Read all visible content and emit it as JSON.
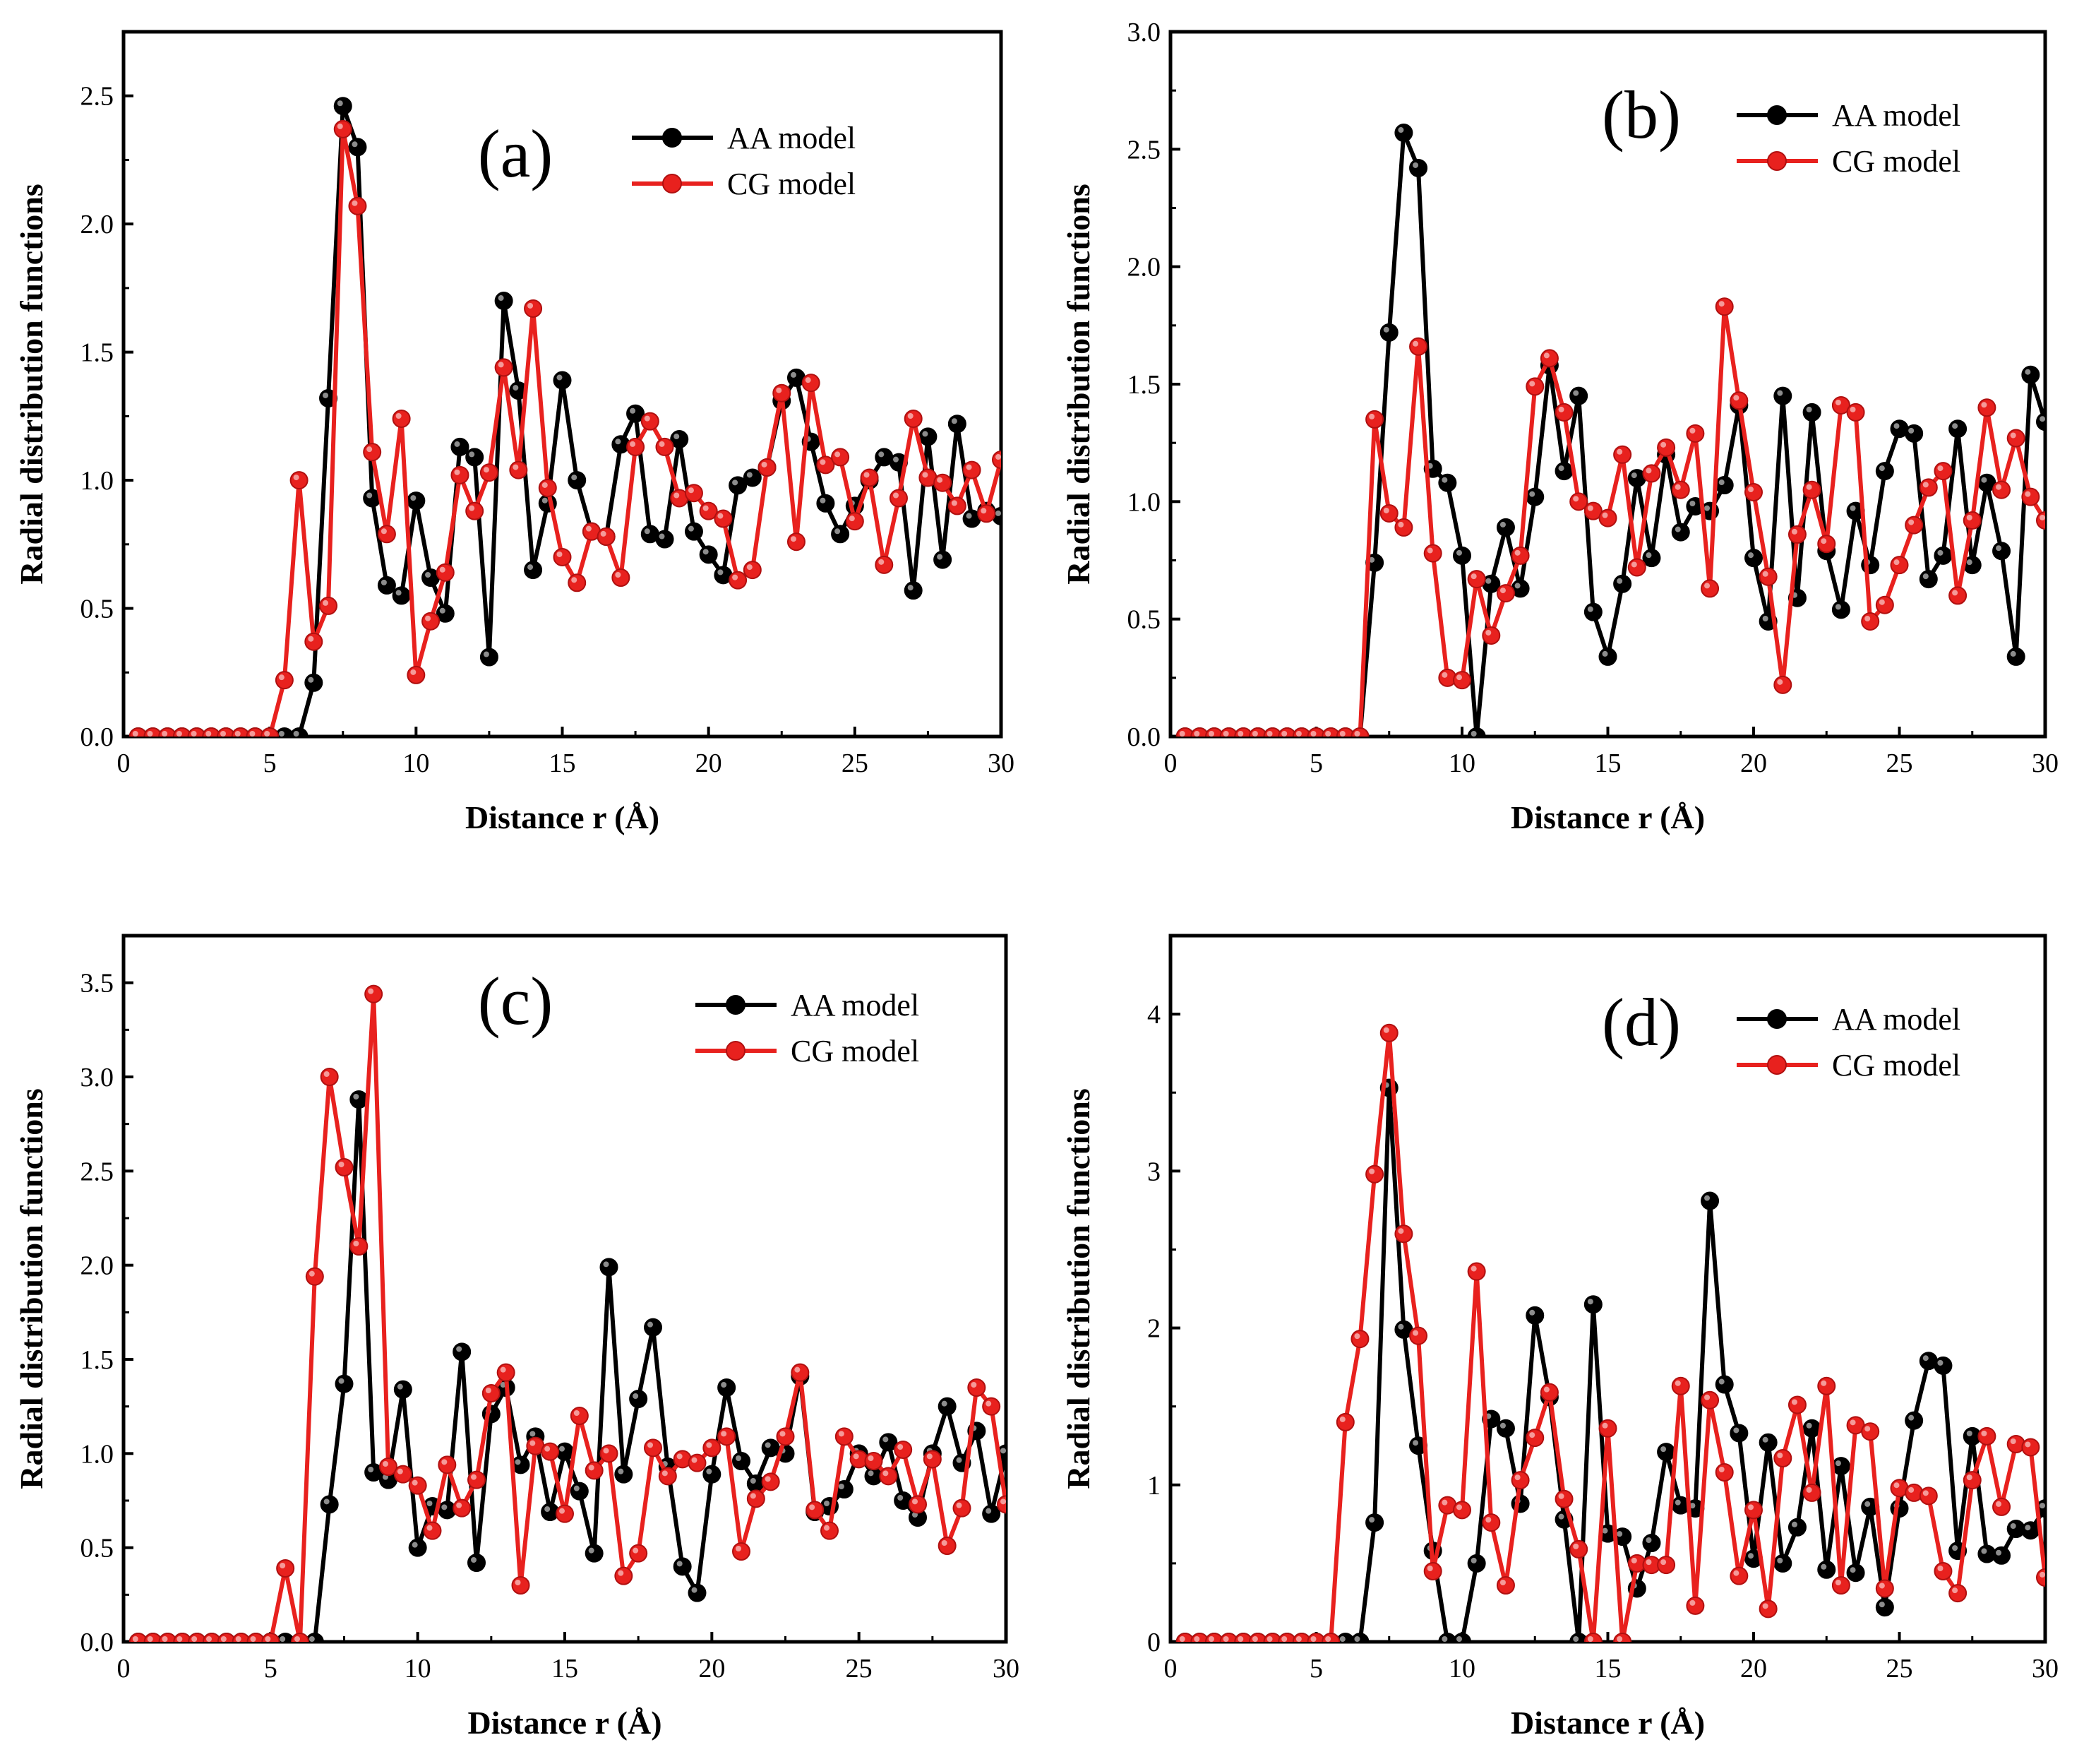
{
  "colors": {
    "aa": "#000000",
    "cg": "#e8211e",
    "frame": "#000000",
    "background": "#ffffff"
  },
  "chart_data": [
    {
      "panel": "(a)",
      "type": "line",
      "xlabel": "Distance r (Å)",
      "ylabel": "Radial distribution functions",
      "xlim": [
        0,
        30
      ],
      "ylim": [
        0,
        2.75
      ],
      "xticks": [
        0,
        5,
        10,
        15,
        20,
        25,
        30
      ],
      "yticks": [
        0.0,
        0.5,
        1.0,
        1.5,
        2.0,
        2.5
      ],
      "ytick_labels": [
        "0.0",
        "0.5",
        "1.0",
        "1.5",
        "2.0",
        "2.5"
      ],
      "legend": {
        "position": "top-right",
        "entries": [
          "AA model",
          "CG model"
        ]
      },
      "x": [
        0.5,
        1.0,
        1.5,
        2.0,
        2.5,
        3.0,
        3.5,
        4.0,
        4.5,
        5.0,
        5.5,
        6.0,
        6.5,
        7.0,
        7.5,
        8.0,
        8.5,
        9.0,
        9.5,
        10.0,
        10.5,
        11.0,
        11.5,
        12.0,
        12.5,
        13.0,
        13.5,
        14.0,
        14.5,
        15.0,
        15.5,
        16.0,
        16.5,
        17.0,
        17.5,
        18.0,
        18.5,
        19.0,
        19.5,
        20.0,
        20.5,
        21.0,
        21.5,
        22.0,
        22.5,
        23.0,
        23.5,
        24.0,
        24.5,
        25.0,
        25.5,
        26.0,
        26.5,
        27.0,
        27.5,
        28.0,
        28.5,
        29.0,
        29.5,
        30.0
      ],
      "series": [
        {
          "name": "AA model",
          "values": [
            0,
            0,
            0,
            0,
            0,
            0,
            0,
            0,
            0,
            0,
            0,
            0,
            0.21,
            1.32,
            2.46,
            2.3,
            0.93,
            0.59,
            0.55,
            0.92,
            0.62,
            0.48,
            1.13,
            1.09,
            0.31,
            1.7,
            1.35,
            0.65,
            0.91,
            1.39,
            1.0,
            0.8,
            0.78,
            1.14,
            1.26,
            0.79,
            0.77,
            1.16,
            0.8,
            0.71,
            0.63,
            0.98,
            1.01,
            1.05,
            1.31,
            1.4,
            1.15,
            0.91,
            0.79,
            0.9,
            1.0,
            1.09,
            1.07,
            0.57,
            1.17,
            0.69,
            1.22,
            0.85,
            0.88,
            0.86
          ]
        },
        {
          "name": "CG model",
          "values": [
            0,
            0,
            0,
            0,
            0,
            0,
            0,
            0,
            0,
            0,
            0.22,
            1.0,
            0.37,
            0.51,
            2.37,
            2.07,
            1.11,
            0.79,
            1.24,
            0.24,
            0.45,
            0.64,
            1.02,
            0.88,
            1.03,
            1.44,
            1.04,
            1.67,
            0.97,
            0.7,
            0.6,
            0.8,
            0.78,
            0.62,
            1.13,
            1.23,
            1.13,
            0.93,
            0.95,
            0.88,
            0.85,
            0.61,
            0.65,
            1.05,
            1.34,
            0.76,
            1.38,
            1.06,
            1.09,
            0.84,
            1.01,
            0.67,
            0.93,
            1.24,
            1.01,
            0.99,
            0.9,
            1.04,
            0.87,
            1.08
          ]
        }
      ]
    },
    {
      "panel": "(b)",
      "type": "line",
      "xlabel": "Distance r (Å)",
      "ylabel": "Radial distribution functions",
      "xlim": [
        0,
        30
      ],
      "ylim": [
        0,
        3.0
      ],
      "xticks": [
        0,
        5,
        10,
        15,
        20,
        25,
        30
      ],
      "yticks": [
        0.0,
        0.5,
        1.0,
        1.5,
        2.0,
        2.5,
        3.0
      ],
      "ytick_labels": [
        "0.0",
        "0.5",
        "1.0",
        "1.5",
        "2.0",
        "2.5",
        "3.0"
      ],
      "legend": {
        "position": "top-right",
        "entries": [
          "AA model",
          "CG model"
        ]
      },
      "x": [
        0.5,
        1.0,
        1.5,
        2.0,
        2.5,
        3.0,
        3.5,
        4.0,
        4.5,
        5.0,
        5.5,
        6.0,
        6.5,
        7.0,
        7.5,
        8.0,
        8.5,
        9.0,
        9.5,
        10.0,
        10.5,
        11.0,
        11.5,
        12.0,
        12.5,
        13.0,
        13.5,
        14.0,
        14.5,
        15.0,
        15.5,
        16.0,
        16.5,
        17.0,
        17.5,
        18.0,
        18.5,
        19.0,
        19.5,
        20.0,
        20.5,
        21.0,
        21.5,
        22.0,
        22.5,
        23.0,
        23.5,
        24.0,
        24.5,
        25.0,
        25.5,
        26.0,
        26.5,
        27.0,
        27.5,
        28.0,
        28.5,
        29.0,
        29.5,
        30.0
      ],
      "series": [
        {
          "name": "AA model",
          "values": [
            0,
            0,
            0,
            0,
            0,
            0,
            0,
            0,
            0,
            0,
            0,
            0,
            0,
            0.74,
            1.72,
            2.57,
            2.42,
            1.14,
            1.08,
            0.77,
            0,
            0.65,
            0.89,
            0.63,
            1.02,
            1.58,
            1.13,
            1.45,
            0.53,
            0.34,
            0.65,
            1.1,
            0.76,
            1.2,
            0.87,
            0.98,
            0.96,
            1.07,
            1.41,
            0.76,
            0.49,
            1.45,
            0.59,
            1.38,
            0.79,
            0.54,
            0.96,
            0.73,
            1.13,
            1.31,
            1.29,
            0.67,
            0.77,
            1.31,
            0.73,
            1.08,
            0.79,
            0.34,
            1.54,
            1.34
          ]
        },
        {
          "name": "CG model",
          "values": [
            0,
            0,
            0,
            0,
            0,
            0,
            0,
            0,
            0,
            0,
            0,
            0,
            0,
            1.35,
            0.95,
            0.89,
            1.66,
            0.78,
            0.25,
            0.24,
            0.67,
            0.43,
            0.61,
            0.77,
            1.49,
            1.61,
            1.38,
            1.0,
            0.96,
            0.93,
            1.2,
            0.72,
            1.12,
            1.23,
            1.05,
            1.29,
            0.63,
            1.83,
            1.43,
            1.04,
            0.68,
            0.22,
            0.86,
            1.05,
            0.82,
            1.41,
            1.38,
            0.49,
            0.56,
            0.73,
            0.9,
            1.06,
            1.13,
            0.6,
            0.92,
            1.4,
            1.05,
            1.27,
            1.02,
            0.92
          ]
        }
      ]
    },
    {
      "panel": "(c)",
      "type": "line",
      "xlabel": "Distance r (Å)",
      "ylabel": "Radial distribution functions",
      "xlim": [
        0,
        30
      ],
      "ylim": [
        0,
        3.75
      ],
      "xticks": [
        0,
        5,
        10,
        15,
        20,
        25,
        30
      ],
      "yticks": [
        0.0,
        0.5,
        1.0,
        1.5,
        2.0,
        2.5,
        3.0,
        3.5
      ],
      "ytick_labels": [
        "0.0",
        "0.5",
        "1.0",
        "1.5",
        "2.0",
        "2.5",
        "3.0",
        "3.5"
      ],
      "legend": {
        "position": "top-right",
        "entries": [
          "AA model",
          "CG model"
        ]
      },
      "x": [
        0.5,
        1.0,
        1.5,
        2.0,
        2.5,
        3.0,
        3.5,
        4.0,
        4.5,
        5.0,
        5.5,
        6.0,
        6.5,
        7.0,
        7.5,
        8.0,
        8.5,
        9.0,
        9.5,
        10.0,
        10.5,
        11.0,
        11.5,
        12.0,
        12.5,
        13.0,
        13.5,
        14.0,
        14.5,
        15.0,
        15.5,
        16.0,
        16.5,
        17.0,
        17.5,
        18.0,
        18.5,
        19.0,
        19.5,
        20.0,
        20.5,
        21.0,
        21.5,
        22.0,
        22.5,
        23.0,
        23.5,
        24.0,
        24.5,
        25.0,
        25.5,
        26.0,
        26.5,
        27.0,
        27.5,
        28.0,
        28.5,
        29.0,
        29.5,
        30.0
      ],
      "series": [
        {
          "name": "AA model",
          "values": [
            0,
            0,
            0,
            0,
            0,
            0,
            0,
            0,
            0,
            0,
            0,
            0,
            0,
            0.73,
            1.37,
            2.88,
            0.9,
            0.86,
            1.34,
            0.5,
            0.72,
            0.7,
            1.54,
            0.42,
            1.21,
            1.35,
            0.94,
            1.09,
            0.69,
            1.01,
            0.8,
            0.47,
            1.99,
            0.89,
            1.29,
            1.67,
            0.93,
            0.4,
            0.26,
            0.89,
            1.35,
            0.96,
            0.84,
            1.03,
            1.0,
            1.41,
            0.69,
            0.72,
            0.81,
            1.0,
            0.88,
            1.06,
            0.75,
            0.66,
            1.0,
            1.25,
            0.95,
            1.12,
            0.68,
            1.0
          ]
        },
        {
          "name": "CG model",
          "values": [
            0,
            0,
            0,
            0,
            0,
            0,
            0,
            0,
            0,
            0,
            0.39,
            0,
            1.94,
            3.0,
            2.52,
            2.1,
            3.44,
            0.93,
            0.89,
            0.83,
            0.59,
            0.94,
            0.71,
            0.86,
            1.32,
            1.43,
            0.3,
            1.04,
            1.01,
            0.68,
            1.2,
            0.91,
            1.0,
            0.35,
            0.47,
            1.03,
            0.88,
            0.97,
            0.95,
            1.03,
            1.09,
            0.48,
            0.76,
            0.85,
            1.09,
            1.43,
            0.7,
            0.59,
            1.09,
            0.97,
            0.96,
            0.88,
            1.02,
            0.73,
            0.97,
            0.51,
            0.71,
            1.35,
            1.25,
            0.73
          ]
        }
      ]
    },
    {
      "panel": "(d)",
      "type": "line",
      "xlabel": "Distance r (Å)",
      "ylabel": "Radial distribution functions",
      "xlim": [
        0,
        30
      ],
      "ylim": [
        0,
        4.5
      ],
      "xticks": [
        0,
        5,
        10,
        15,
        20,
        25,
        30
      ],
      "yticks": [
        0,
        1,
        2,
        3,
        4
      ],
      "ytick_labels": [
        "0",
        "1",
        "2",
        "3",
        "4"
      ],
      "legend": {
        "position": "top-right",
        "entries": [
          "AA model",
          "CG model"
        ]
      },
      "x": [
        0.5,
        1.0,
        1.5,
        2.0,
        2.5,
        3.0,
        3.5,
        4.0,
        4.5,
        5.0,
        5.5,
        6.0,
        6.5,
        7.0,
        7.5,
        8.0,
        8.5,
        9.0,
        9.5,
        10.0,
        10.5,
        11.0,
        11.5,
        12.0,
        12.5,
        13.0,
        13.5,
        14.0,
        14.5,
        15.0,
        15.5,
        16.0,
        16.5,
        17.0,
        17.5,
        18.0,
        18.5,
        19.0,
        19.5,
        20.0,
        20.5,
        21.0,
        21.5,
        22.0,
        22.5,
        23.0,
        23.5,
        24.0,
        24.5,
        25.0,
        25.5,
        26.0,
        26.5,
        27.0,
        27.5,
        28.0,
        28.5,
        29.0,
        29.5,
        30.0
      ],
      "series": [
        {
          "name": "AA model",
          "values": [
            0,
            0,
            0,
            0,
            0,
            0,
            0,
            0,
            0,
            0,
            0,
            0,
            0,
            0.76,
            3.53,
            1.99,
            1.25,
            0.58,
            0,
            0,
            0.5,
            1.42,
            1.36,
            0.88,
            2.08,
            1.56,
            0.78,
            0,
            2.15,
            0.69,
            0.67,
            0.34,
            0.63,
            1.21,
            0.87,
            0.85,
            2.81,
            1.64,
            1.33,
            0.53,
            1.27,
            0.5,
            0.73,
            1.36,
            0.46,
            1.12,
            0.44,
            0.86,
            0.22,
            0.85,
            1.41,
            1.79,
            1.76,
            0.58,
            1.31,
            0.56,
            0.55,
            0.72,
            0.71,
            0.85
          ]
        },
        {
          "name": "CG model",
          "values": [
            0,
            0,
            0,
            0,
            0,
            0,
            0,
            0,
            0,
            0,
            0,
            1.4,
            1.93,
            2.98,
            3.88,
            2.6,
            1.95,
            0.45,
            0.87,
            0.84,
            2.36,
            0.76,
            0.36,
            1.03,
            1.3,
            1.59,
            0.91,
            0.59,
            0,
            1.36,
            0,
            0.5,
            0.49,
            0.49,
            1.63,
            0.23,
            1.54,
            1.08,
            0.42,
            0.84,
            0.21,
            1.17,
            1.51,
            0.95,
            1.63,
            0.36,
            1.38,
            1.34,
            0.34,
            0.98,
            0.95,
            0.93,
            0.45,
            0.31,
            1.03,
            1.31,
            0.86,
            1.26,
            1.24,
            0.41
          ]
        }
      ]
    }
  ]
}
